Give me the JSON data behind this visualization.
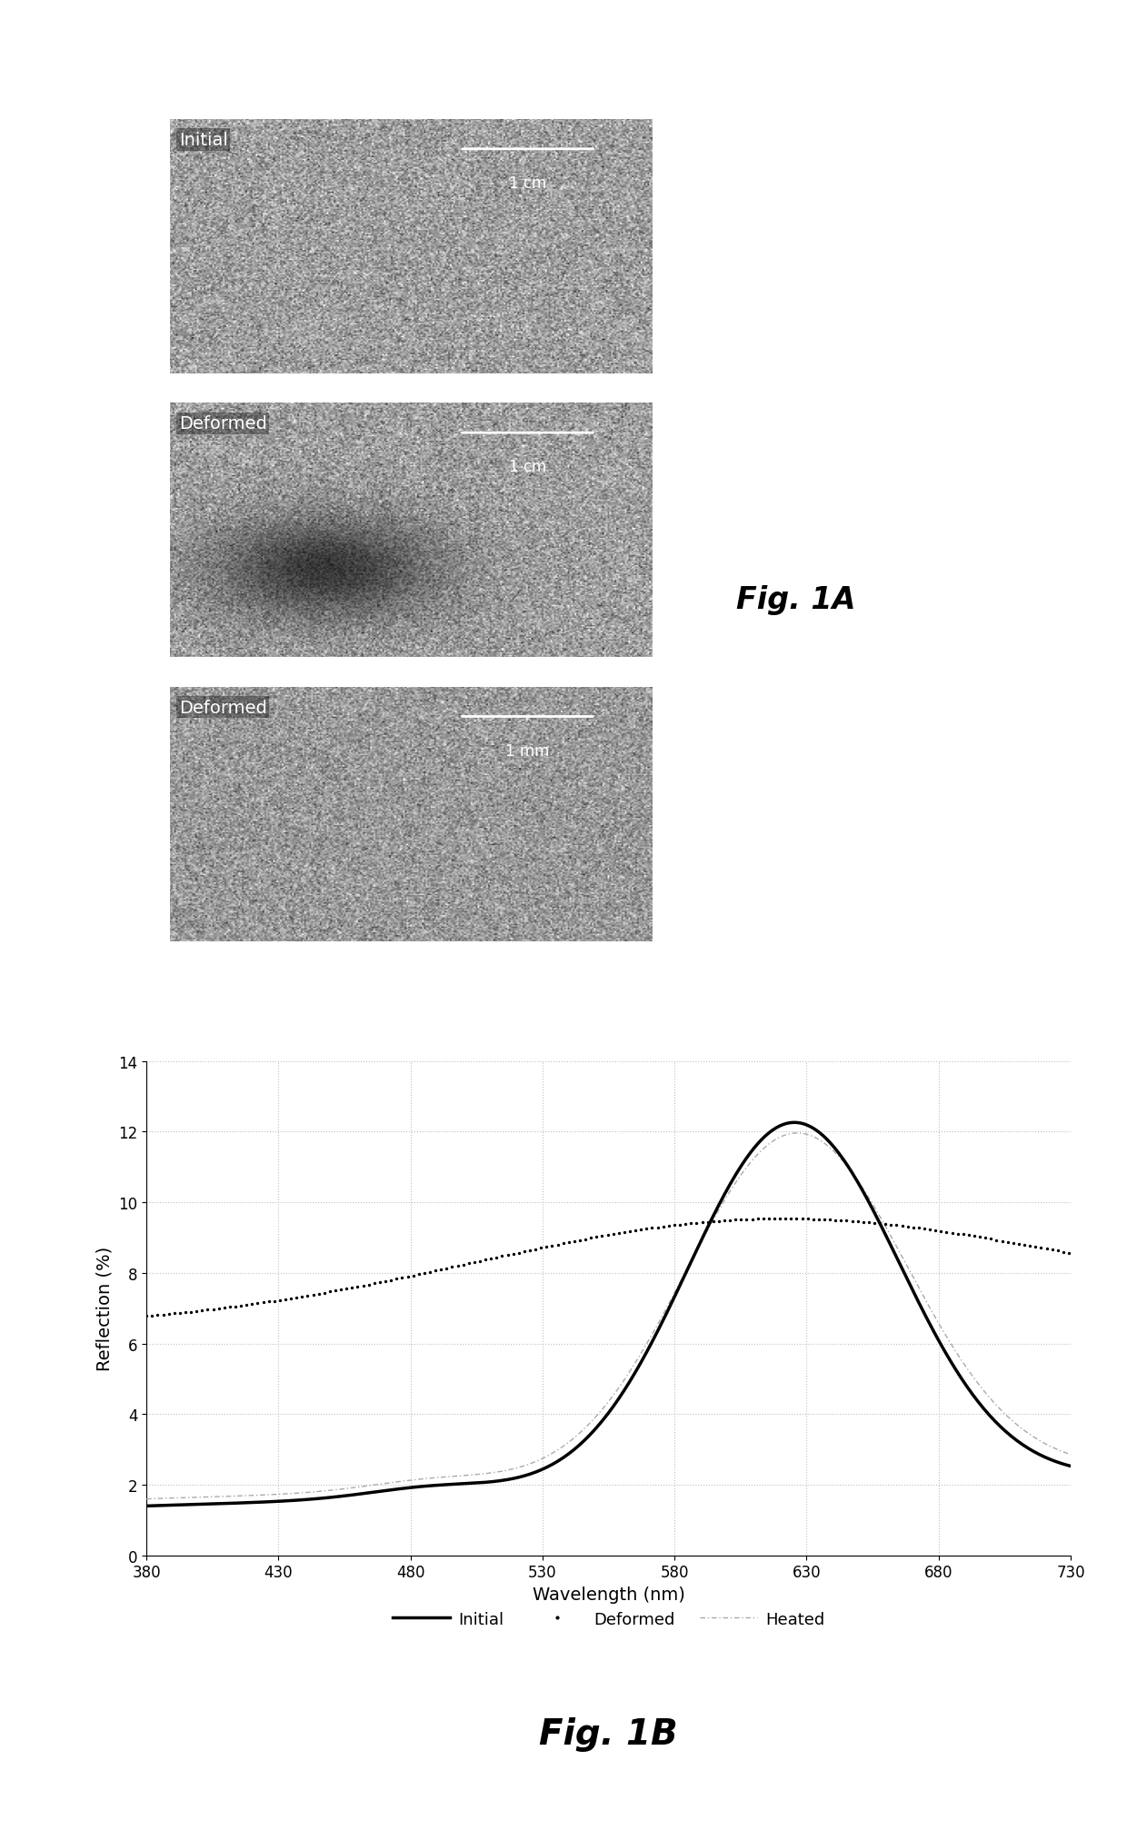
{
  "fig_label_1A": "Fig. 1A",
  "fig_label_1B": "Fig. 1B",
  "xlabel": "Wavelength (nm)",
  "ylabel": "Reflection (%)",
  "xlim": [
    380,
    730
  ],
  "ylim": [
    0,
    14
  ],
  "xticks": [
    380,
    430,
    480,
    530,
    580,
    630,
    680,
    730
  ],
  "yticks": [
    0,
    2,
    4,
    6,
    8,
    10,
    12,
    14
  ],
  "legend_labels": [
    "Initial",
    "Deformed",
    "Heated"
  ],
  "grid_color": "#c0c0c0",
  "line_color_initial": "#000000",
  "line_color_deformed": "#000000",
  "line_color_heated": "#aaaaaa",
  "img_labels": [
    {
      "text": "Initial",
      "scale": "1 cm"
    },
    {
      "text": "Deformed",
      "scale": "1 cm"
    },
    {
      "text": "Deformed",
      "scale": "1 mm"
    }
  ],
  "img_mean": 0.62,
  "img_std": 0.13
}
